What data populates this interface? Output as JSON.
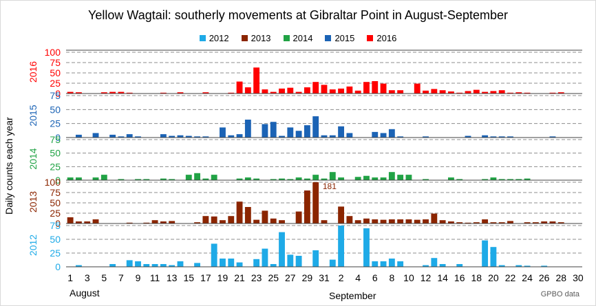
{
  "chart_data": {
    "type": "bar",
    "title": "Yellow Wagtail: southerly movements at Gibraltar Point in August-September",
    "ylabel": "Daily counts each year",
    "credit": "GPBO data",
    "month_labels": [
      "August",
      "September"
    ],
    "x_tick_labels": [
      "1",
      "3",
      "5",
      "7",
      "9",
      "11",
      "13",
      "15",
      "17",
      "19",
      "21",
      "23",
      "25",
      "27",
      "29",
      "31",
      "2",
      "4",
      "6",
      "8",
      "10",
      "12",
      "14",
      "16",
      "18",
      "20",
      "22",
      "24",
      "26",
      "28",
      "30"
    ],
    "legend": [
      {
        "name": "2012",
        "color": "#1eaae7"
      },
      {
        "name": "2013",
        "color": "#8b2500"
      },
      {
        "name": "2014",
        "color": "#21a345"
      },
      {
        "name": "2015",
        "color": "#1b63b5"
      },
      {
        "name": "2016",
        "color": "#ff0000"
      }
    ],
    "panels": [
      {
        "name": "2016",
        "color": "#ff0000",
        "ylim": [
          0,
          100
        ],
        "yticks": [
          "0",
          "25",
          "50",
          "75",
          "100"
        ],
        "annotation": "",
        "values": [
          4,
          3,
          0,
          0,
          3,
          4,
          4,
          2,
          0,
          0,
          0,
          2,
          0,
          3,
          0,
          0,
          3,
          0,
          0,
          2,
          29,
          15,
          63,
          10,
          4,
          12,
          14,
          4,
          15,
          28,
          21,
          10,
          12,
          17,
          7,
          28,
          30,
          24,
          8,
          8,
          0,
          24,
          7,
          11,
          8,
          5,
          2,
          6,
          9,
          4,
          6,
          8,
          2,
          3,
          2,
          0,
          0,
          2,
          3,
          0,
          0
        ]
      },
      {
        "name": "2015",
        "color": "#1b63b5",
        "ylim": [
          0,
          75
        ],
        "yticks": [
          "0",
          "25",
          "50",
          "75"
        ],
        "annotation": "",
        "values": [
          0,
          5,
          0,
          8,
          0,
          5,
          2,
          6,
          2,
          0,
          0,
          6,
          3,
          4,
          3,
          2,
          2,
          0,
          18,
          4,
          6,
          32,
          0,
          24,
          28,
          3,
          18,
          12,
          22,
          38,
          4,
          4,
          20,
          8,
          0,
          0,
          10,
          8,
          15,
          2,
          0,
          0,
          2,
          0,
          0,
          0,
          0,
          3,
          0,
          4,
          2,
          2,
          2,
          0,
          0,
          0,
          0,
          2,
          0,
          0,
          0
        ]
      },
      {
        "name": "2014",
        "color": "#21a345",
        "ylim": [
          0,
          75
        ],
        "yticks": [
          "0",
          "25",
          "50",
          "75"
        ],
        "annotation": "",
        "values": [
          5,
          5,
          0,
          5,
          10,
          0,
          2,
          0,
          2,
          2,
          0,
          3,
          2,
          0,
          10,
          13,
          3,
          10,
          0,
          0,
          3,
          5,
          3,
          0,
          2,
          3,
          2,
          5,
          3,
          10,
          3,
          15,
          5,
          0,
          6,
          8,
          5,
          5,
          15,
          10,
          10,
          0,
          2,
          0,
          0,
          5,
          2,
          0,
          0,
          2,
          5,
          2,
          2,
          2,
          3,
          0,
          0,
          0,
          0,
          0,
          0
        ]
      },
      {
        "name": "2013",
        "color": "#8b2500",
        "ylim": [
          0,
          100
        ],
        "yticks": [
          "0",
          "25",
          "50",
          "75",
          "100"
        ],
        "annotation": "181",
        "annotation_day_index": 29,
        "values": [
          15,
          5,
          5,
          10,
          0,
          0,
          0,
          2,
          0,
          2,
          8,
          5,
          6,
          0,
          0,
          3,
          18,
          17,
          8,
          18,
          53,
          40,
          9,
          31,
          12,
          8,
          0,
          29,
          80,
          100,
          8,
          0,
          41,
          18,
          8,
          12,
          10,
          9,
          10,
          10,
          10,
          9,
          10,
          24,
          8,
          5,
          3,
          2,
          3,
          10,
          3,
          3,
          6,
          0,
          3,
          3,
          5,
          5,
          3,
          0,
          0
        ]
      },
      {
        "name": "2012",
        "color": "#1eaae7",
        "ylim": [
          0,
          75
        ],
        "yticks": [
          "0",
          "25",
          "50",
          "75"
        ],
        "annotation": "",
        "values": [
          0,
          3,
          0,
          0,
          0,
          5,
          0,
          12,
          10,
          5,
          5,
          5,
          3,
          10,
          0,
          7,
          0,
          42,
          15,
          15,
          8,
          0,
          14,
          33,
          5,
          63,
          22,
          20,
          0,
          30,
          0,
          13,
          75,
          0,
          0,
          70,
          10,
          10,
          15,
          10,
          0,
          0,
          3,
          16,
          5,
          0,
          5,
          0,
          0,
          48,
          36,
          3,
          0,
          3,
          2,
          0,
          2,
          0,
          0,
          0,
          0
        ]
      }
    ]
  }
}
